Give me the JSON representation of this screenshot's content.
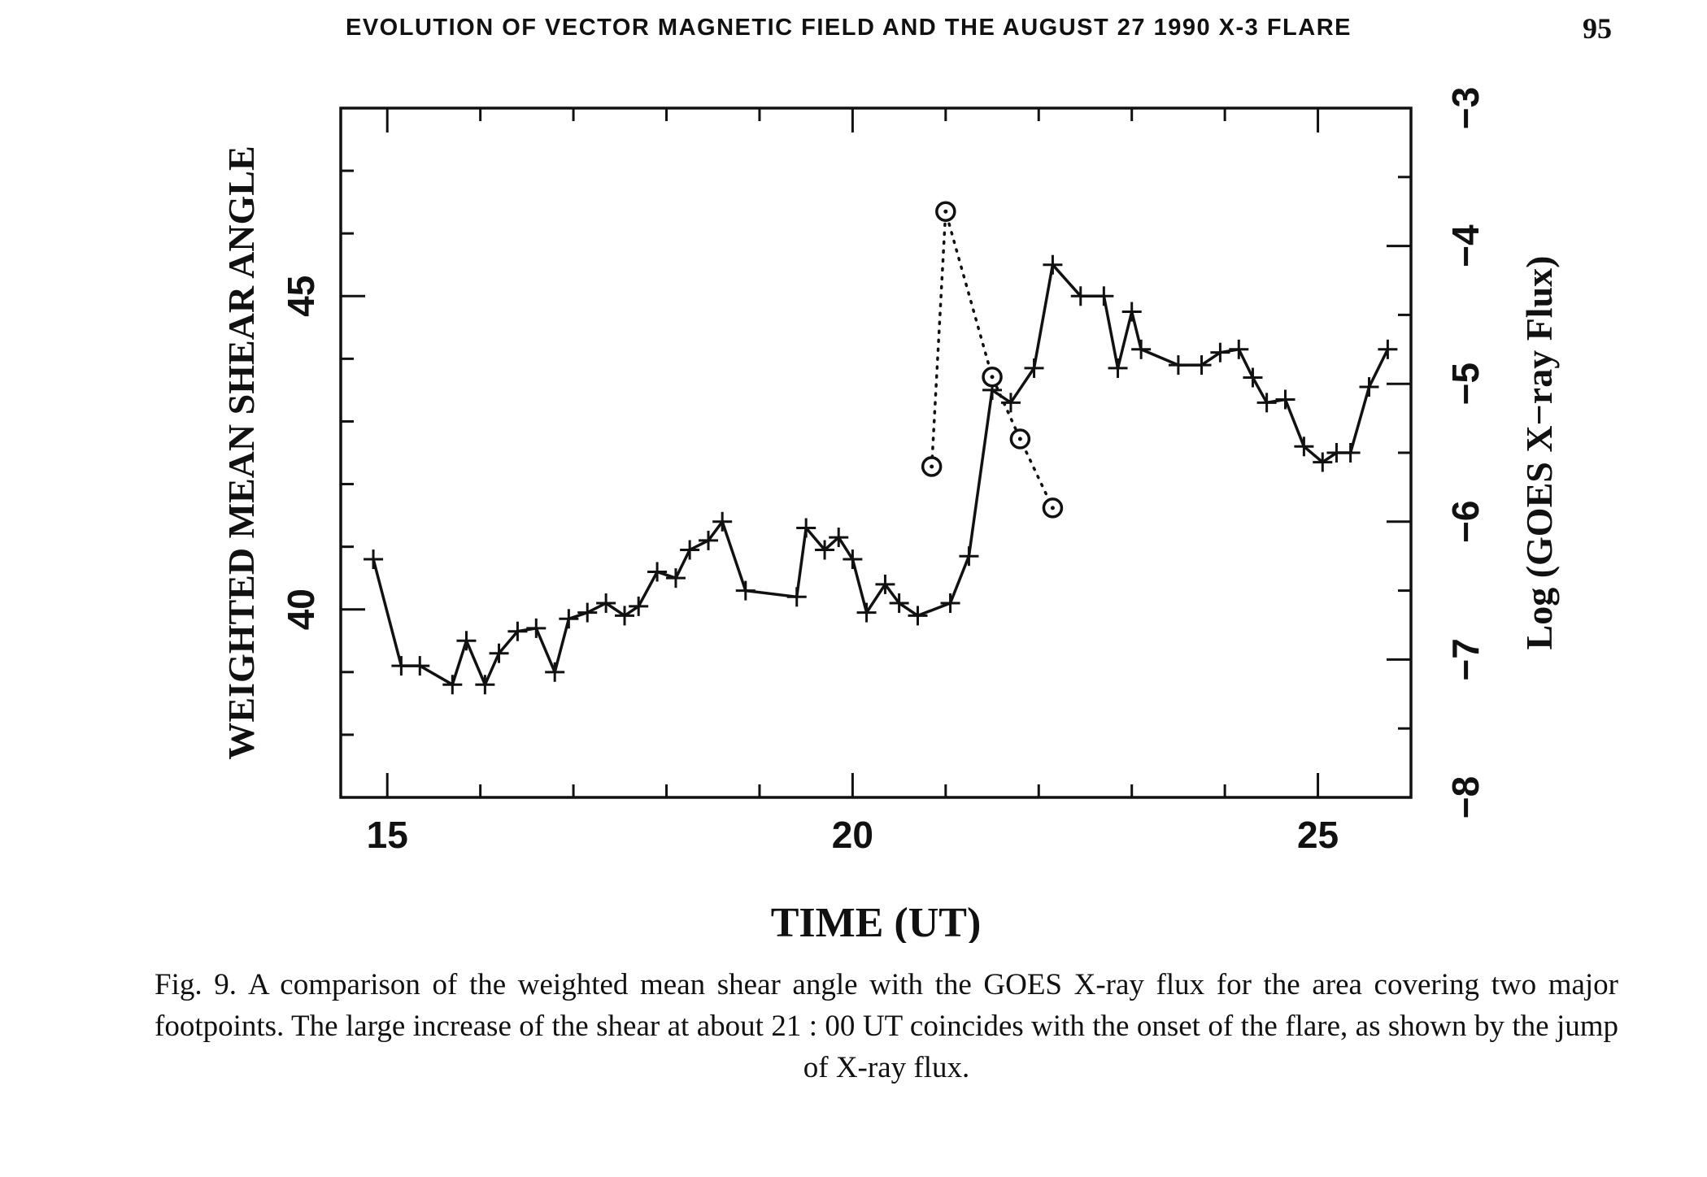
{
  "running_head": {
    "title": "EVOLUTION OF VECTOR MAGNETIC FIELD AND THE AUGUST 27 1990 X-3 FLARE",
    "page_number": "95"
  },
  "caption": {
    "figure_label": "Fig. 9.",
    "text": "A comparison of the weighted mean shear angle with the GOES X-ray flux for the area covering two major footpoints. The large increase of the shear at about 21 : 00 UT coincides with the onset of the flare, as shown by the jump of X-ray flux."
  },
  "chart_data": {
    "type": "line",
    "title": "",
    "xlabel": "TIME (UT)",
    "ylabel": "WEIGHTED MEAN SHEAR ANGLE",
    "y2label": "Log (GOES X−ray Flux)",
    "xlim": [
      14.5,
      26.0
    ],
    "ylim": [
      37.0,
      48.0
    ],
    "y2lim": [
      -8.0,
      -3.0
    ],
    "x_ticks": [
      "15",
      "20",
      "25"
    ],
    "y_ticks": [
      "40",
      "45"
    ],
    "y2_ticks": [
      "−8",
      "−7",
      "−6",
      "−5",
      "−4",
      "−3"
    ],
    "grid": false,
    "legend": "none",
    "colors": {
      "ink": "#111111",
      "background": "#ffffff"
    },
    "series": [
      {
        "axis": "left",
        "style": "solid-line-plus-markers",
        "points": [
          [
            14.85,
            40.8
          ],
          [
            15.15,
            39.1
          ],
          [
            15.35,
            39.1
          ],
          [
            15.7,
            38.8
          ],
          [
            15.85,
            39.5
          ],
          [
            16.05,
            38.8
          ],
          [
            16.2,
            39.3
          ],
          [
            16.4,
            39.65
          ],
          [
            16.6,
            39.7
          ],
          [
            16.8,
            39.0
          ],
          [
            16.95,
            39.85
          ],
          [
            17.15,
            39.95
          ],
          [
            17.35,
            40.1
          ],
          [
            17.55,
            39.9
          ],
          [
            17.7,
            40.05
          ],
          [
            17.9,
            40.6
          ],
          [
            18.1,
            40.5
          ],
          [
            18.25,
            40.95
          ],
          [
            18.45,
            41.1
          ],
          [
            18.6,
            41.4
          ],
          [
            18.85,
            40.3
          ],
          [
            19.4,
            40.2
          ],
          [
            19.5,
            41.3
          ],
          [
            19.7,
            40.95
          ],
          [
            19.85,
            41.15
          ],
          [
            20.0,
            40.8
          ],
          [
            20.15,
            39.95
          ],
          [
            20.35,
            40.4
          ],
          [
            20.5,
            40.1
          ],
          [
            20.7,
            39.9
          ],
          [
            21.05,
            40.1
          ],
          [
            21.25,
            40.85
          ],
          [
            21.5,
            43.5
          ],
          [
            21.7,
            43.3
          ],
          [
            21.95,
            43.85
          ],
          [
            22.15,
            45.5
          ],
          [
            22.45,
            45.0
          ],
          [
            22.7,
            45.0
          ],
          [
            22.85,
            43.85
          ],
          [
            23.0,
            44.75
          ],
          [
            23.1,
            44.15
          ],
          [
            23.5,
            43.9
          ],
          [
            23.75,
            43.9
          ],
          [
            23.95,
            44.1
          ],
          [
            24.15,
            44.15
          ],
          [
            24.3,
            43.7
          ],
          [
            24.45,
            43.3
          ],
          [
            24.65,
            43.35
          ],
          [
            24.85,
            42.6
          ],
          [
            25.05,
            42.35
          ],
          [
            25.2,
            42.5
          ],
          [
            25.35,
            42.5
          ],
          [
            25.55,
            43.55
          ],
          [
            25.75,
            44.15
          ]
        ]
      },
      {
        "axis": "right",
        "style": "dotted-line-circle-markers",
        "points": [
          [
            20.85,
            -5.6
          ],
          [
            21.0,
            -3.75
          ],
          [
            21.5,
            -4.95
          ],
          [
            21.8,
            -5.4
          ],
          [
            22.15,
            -5.9
          ]
        ]
      }
    ]
  }
}
